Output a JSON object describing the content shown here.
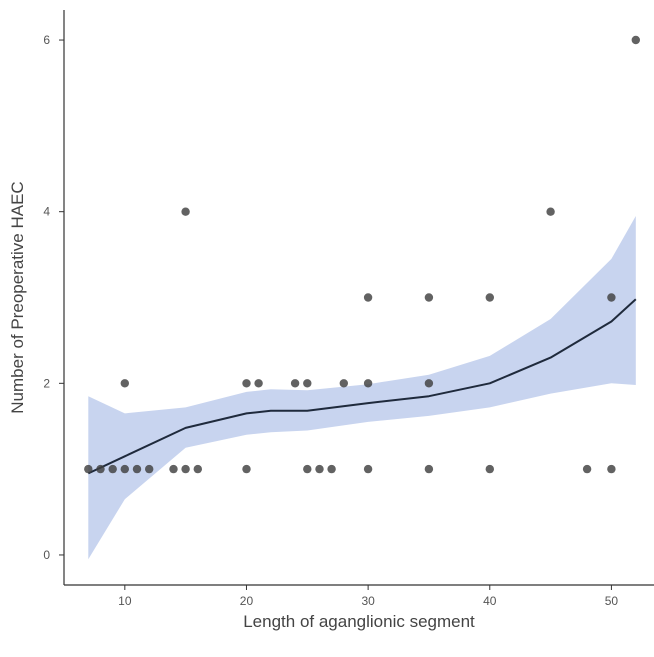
{
  "chart_data": {
    "type": "scatter",
    "title": "",
    "xlabel": "Length of aganglionic segment",
    "ylabel": "Number of Preoperative HAEC",
    "xlim": [
      5,
      53.5
    ],
    "ylim": [
      -0.35,
      6.35
    ],
    "x_ticks": [
      10,
      20,
      30,
      40,
      50
    ],
    "y_ticks": [
      0,
      2,
      4,
      6
    ],
    "grid": false,
    "legend": "none",
    "colors": {
      "point": "#3f3f3f",
      "point_light": "#5d6470",
      "smooth_line": "#1f2a3c",
      "confidence_band": "#c8d4ef",
      "axis": "#333333"
    },
    "points": [
      {
        "x": 7,
        "y": 1
      },
      {
        "x": 8,
        "y": 1
      },
      {
        "x": 9,
        "y": 1
      },
      {
        "x": 10,
        "y": 1
      },
      {
        "x": 11,
        "y": 1
      },
      {
        "x": 12,
        "y": 1
      },
      {
        "x": 14,
        "y": 1
      },
      {
        "x": 15,
        "y": 1
      },
      {
        "x": 16,
        "y": 1
      },
      {
        "x": 20,
        "y": 1
      },
      {
        "x": 25,
        "y": 1
      },
      {
        "x": 26,
        "y": 1
      },
      {
        "x": 27,
        "y": 1
      },
      {
        "x": 30,
        "y": 1
      },
      {
        "x": 35,
        "y": 1
      },
      {
        "x": 40,
        "y": 1
      },
      {
        "x": 48,
        "y": 1
      },
      {
        "x": 50,
        "y": 1
      },
      {
        "x": 10,
        "y": 2
      },
      {
        "x": 20,
        "y": 2
      },
      {
        "x": 21,
        "y": 2
      },
      {
        "x": 24,
        "y": 2
      },
      {
        "x": 25,
        "y": 2
      },
      {
        "x": 28,
        "y": 2
      },
      {
        "x": 30,
        "y": 2
      },
      {
        "x": 35,
        "y": 2
      },
      {
        "x": 30,
        "y": 3
      },
      {
        "x": 35,
        "y": 3
      },
      {
        "x": 40,
        "y": 3
      },
      {
        "x": 50,
        "y": 3
      },
      {
        "x": 15,
        "y": 4
      },
      {
        "x": 45,
        "y": 4
      },
      {
        "x": 52,
        "y": 6
      }
    ],
    "smooth": {
      "x": [
        7,
        10,
        15,
        20,
        22,
        25,
        30,
        35,
        40,
        45,
        50,
        52
      ],
      "y": [
        0.95,
        1.15,
        1.48,
        1.65,
        1.68,
        1.68,
        1.77,
        1.85,
        2.0,
        2.3,
        2.72,
        2.98
      ],
      "lower": [
        -0.05,
        0.65,
        1.25,
        1.4,
        1.43,
        1.45,
        1.55,
        1.62,
        1.72,
        1.88,
        2.0,
        1.98
      ],
      "upper": [
        1.85,
        1.65,
        1.72,
        1.9,
        1.93,
        1.92,
        1.99,
        2.1,
        2.32,
        2.75,
        3.45,
        3.95
      ]
    }
  }
}
